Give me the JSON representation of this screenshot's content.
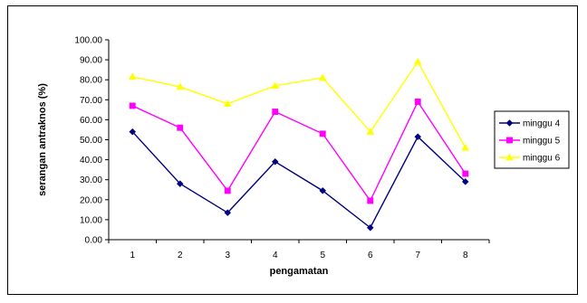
{
  "chart_data": {
    "type": "line",
    "title": "",
    "xlabel": "pengamatan",
    "ylabel": "serangan antraknos (%)",
    "categories": [
      "1",
      "2",
      "3",
      "4",
      "5",
      "6",
      "7",
      "8"
    ],
    "y_ticks": [
      "0.00",
      "10.00",
      "20.00",
      "30.00",
      "40.00",
      "50.00",
      "60.00",
      "70.00",
      "80.00",
      "90.00",
      "100.00"
    ],
    "ylim": [
      0,
      100
    ],
    "grid": false,
    "legend_position": "right",
    "series": [
      {
        "name": "minggu 4",
        "color": "#000080",
        "marker": "diamond",
        "values": [
          54.0,
          28.0,
          13.5,
          39.0,
          24.5,
          6.0,
          51.5,
          29.0
        ]
      },
      {
        "name": "minggu 5",
        "color": "#ff00ff",
        "marker": "square",
        "values": [
          67.0,
          56.0,
          24.5,
          64.0,
          53.0,
          19.5,
          69.0,
          33.0
        ]
      },
      {
        "name": "minggu 6",
        "color": "#ffff00",
        "marker": "triangle",
        "values": [
          81.5,
          76.5,
          68.0,
          77.0,
          81.0,
          54.0,
          89.0,
          46.0
        ]
      }
    ]
  }
}
